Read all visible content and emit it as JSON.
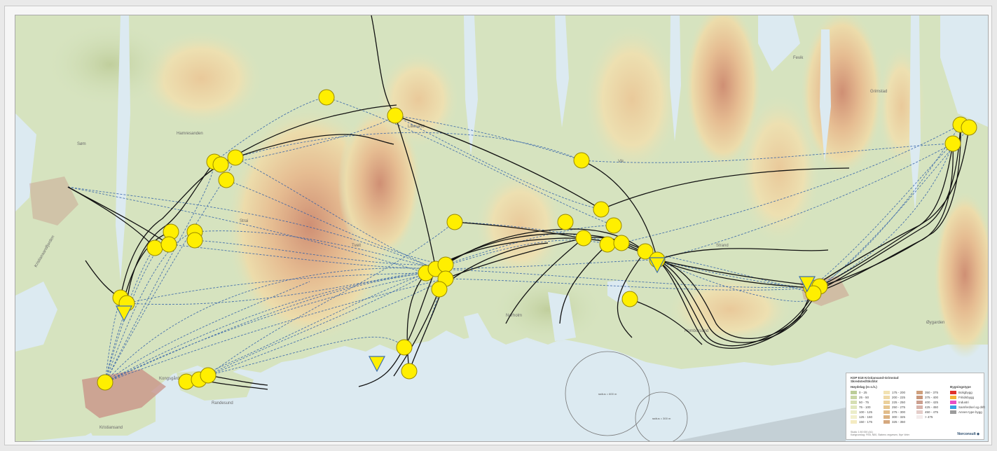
{
  "place_labels": [
    "Kristiansand",
    "Kristiansandfjorden",
    "Randesund",
    "Kongsgård",
    "Søm",
    "Hamresanden",
    "Strai",
    "Tveit",
    "Lillesand",
    "Grimstad",
    "Homborsund",
    "Nørholm",
    "Fevik",
    "Strand",
    "Vik",
    "Øygarden"
  ],
  "circle_labels": [
    "radius = 600 m",
    "radius = 300 m"
  ],
  "legend": {
    "title_line1": "KDP E18 Kristiansand-Grimstad",
    "title_line2": "Skredsted/Skråfot",
    "height_header": "Høydelag (m o.h.)",
    "height_col1": [
      "0 - 25",
      "25 - 50",
      "50 - 75",
      "75 - 100",
      "100 - 125",
      "125 - 150",
      "150 - 175"
    ],
    "height_col2": [
      "175 - 200",
      "200 - 225",
      "225 - 250",
      "250 - 275",
      "275 - 300",
      "300 - 325",
      "325 - 350"
    ],
    "height_col3": [
      "350 - 375",
      "375 - 400",
      "400 - 425",
      "425 - 450",
      "450 - 475",
      "> 475"
    ],
    "landuse_header": "Bygningstype",
    "landuse": [
      "Boligbygg",
      "Fritidsbygg",
      "Industri",
      "Samferdsel og drift",
      "Annen type bygg"
    ],
    "footnote_line1": "Skala: 1:50 000 (A1)",
    "footnote_line2": "Kartgrunnlag: FKB, N50, Statens vegvesen, Nye Veier",
    "brand": "Norconsult"
  },
  "colors": {
    "sea": "#dceaf1",
    "land_low": "#d5e3bd",
    "land_mid": "#e9dcb0",
    "land_high": "#dcae8d",
    "land_peak": "#c98f78",
    "alignment_line": "#111111",
    "dashed_connection": "#2f5fa8",
    "node_fill": "#ffef00",
    "node_stroke": "#9a8a00",
    "urban": "#c98f84"
  },
  "legend_colors": {
    "height_col1": [
      "#bccd98",
      "#c9d6a5",
      "#d6dfb3",
      "#e1e7bf",
      "#ebedc9",
      "#f2f0cd",
      "#f4ebc1"
    ],
    "height_col2": [
      "#f2e2b2",
      "#efd9a6",
      "#ebd09b",
      "#e6c691",
      "#e1bc89",
      "#dbb282",
      "#d5a87e"
    ],
    "height_col3": [
      "#cf9f7c",
      "#c9977b",
      "#cc9f8f",
      "#d7b3aa",
      "#e4cdc9",
      "#f3ecec"
    ],
    "landuse": [
      "#e0312b",
      "#f4b238",
      "#e84fc4",
      "#3aa0e2",
      "#9c9c9c"
    ]
  },
  "nodes": [
    [
      "n01",
      444,
      117
    ],
    [
      "n02",
      542,
      143
    ],
    [
      "n03",
      284,
      209
    ],
    [
      "n04",
      293,
      213
    ],
    [
      "n05",
      314,
      203
    ],
    [
      "n06",
      301,
      235
    ],
    [
      "n07",
      222,
      309
    ],
    [
      "n08",
      256,
      309
    ],
    [
      "n09",
      256,
      321
    ],
    [
      "n10",
      199,
      332
    ],
    [
      "n11",
      219,
      327
    ],
    [
      "n12",
      150,
      403
    ],
    [
      "n13",
      159,
      411
    ],
    [
      "n14",
      128,
      524
    ],
    [
      "n15",
      244,
      523
    ],
    [
      "n16",
      262,
      520
    ],
    [
      "n17",
      275,
      514
    ],
    [
      "n18",
      627,
      295
    ],
    [
      "n19",
      586,
      368
    ],
    [
      "n20",
      600,
      362
    ],
    [
      "n21",
      614,
      356
    ],
    [
      "n22",
      614,
      376
    ],
    [
      "n23",
      605,
      391
    ],
    [
      "n24",
      555,
      474
    ],
    [
      "n25",
      562,
      508
    ],
    [
      "n26",
      808,
      207
    ],
    [
      "n27",
      785,
      295
    ],
    [
      "n28",
      811,
      318
    ],
    [
      "n29",
      836,
      277
    ],
    [
      "n30",
      854,
      300
    ],
    [
      "n31",
      845,
      327
    ],
    [
      "n32",
      865,
      325
    ],
    [
      "n33",
      899,
      337
    ],
    [
      "n34",
      916,
      349
    ],
    [
      "n35",
      877,
      405
    ],
    [
      "n36",
      1136,
      389
    ],
    [
      "n37",
      1148,
      387
    ],
    [
      "n38",
      1139,
      397
    ],
    [
      "n39",
      1338,
      183
    ],
    [
      "n40",
      1349,
      156
    ],
    [
      "n41",
      1361,
      160
    ]
  ],
  "triangles": [
    [
      "t1",
      155,
      425,
      "down"
    ],
    [
      "t2",
      516,
      497,
      "down"
    ],
    [
      "t3",
      916,
      356,
      "down"
    ],
    [
      "t4",
      1130,
      383,
      "down"
    ]
  ]
}
